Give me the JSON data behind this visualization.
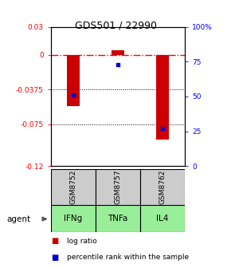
{
  "title": "GDS501 / 22990",
  "samples": [
    "GSM8752",
    "GSM8757",
    "GSM8762"
  ],
  "agents": [
    "IFNg",
    "TNFa",
    "IL4"
  ],
  "log_ratios": [
    -0.055,
    0.005,
    -0.091
  ],
  "percentile_ranks": [
    51,
    73,
    27
  ],
  "ymin": -0.12,
  "ymax": 0.03,
  "left_ticks": [
    0.03,
    0.0,
    -0.0375,
    -0.075,
    -0.12
  ],
  "left_tick_labels": [
    "0.03",
    "0",
    "-0.0375",
    "-0.075",
    "-0.12"
  ],
  "right_ticks": [
    100,
    75,
    50,
    25,
    0
  ],
  "right_tick_labels": [
    "100%",
    "75",
    "50",
    "25",
    "0"
  ],
  "bar_color": "#cc0000",
  "dot_color": "#0000cc",
  "sample_bg_color": "#cccccc",
  "agent_bg_color": "#99ee99",
  "legend_log": "log ratio",
  "legend_pct": "percentile rank within the sample"
}
